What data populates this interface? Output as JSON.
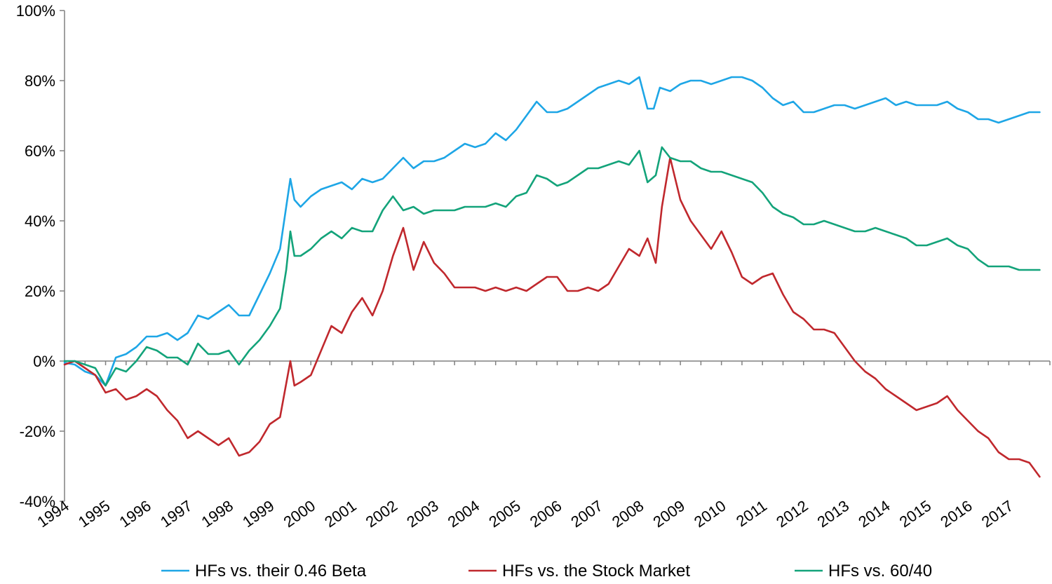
{
  "chart_data": {
    "type": "line",
    "title": "",
    "xlabel": "",
    "ylabel": "",
    "ylim": [
      -40,
      100
    ],
    "yticks": [
      "100%",
      "80%",
      "60%",
      "40%",
      "20%",
      "0%",
      "-20%",
      "-40%"
    ],
    "ytick_values": [
      100,
      80,
      60,
      40,
      20,
      0,
      -20,
      -40
    ],
    "xlim": [
      1994.0,
      2018.0
    ],
    "xticks": [
      "1994",
      "1995",
      "1996",
      "1997",
      "1998",
      "1999",
      "2000",
      "2001",
      "2002",
      "2003",
      "2004",
      "2005",
      "2006",
      "2007",
      "2008",
      "2009",
      "2010",
      "2011",
      "2012",
      "2013",
      "2014",
      "2015",
      "2016",
      "2017"
    ],
    "grid": false,
    "legend_position": "bottom",
    "series": [
      {
        "name": "HFs vs. their 0.46 Beta",
        "color": "#1ea6e6",
        "x": [
          1994.0,
          1994.25,
          1994.5,
          1994.75,
          1995.0,
          1995.25,
          1995.5,
          1995.75,
          1996.0,
          1996.25,
          1996.5,
          1996.75,
          1997.0,
          1997.25,
          1997.5,
          1997.75,
          1998.0,
          1998.25,
          1998.5,
          1998.75,
          1999.0,
          1999.25,
          1999.4,
          1999.5,
          1999.6,
          1999.75,
          2000.0,
          2000.25,
          2000.5,
          2000.75,
          2001.0,
          2001.25,
          2001.5,
          2001.75,
          2002.0,
          2002.25,
          2002.5,
          2002.75,
          2003.0,
          2003.25,
          2003.5,
          2003.75,
          2004.0,
          2004.25,
          2004.5,
          2004.75,
          2005.0,
          2005.25,
          2005.5,
          2005.75,
          2006.0,
          2006.25,
          2006.5,
          2006.75,
          2007.0,
          2007.25,
          2007.5,
          2007.75,
          2008.0,
          2008.2,
          2008.35,
          2008.5,
          2008.75,
          2009.0,
          2009.25,
          2009.5,
          2009.75,
          2010.0,
          2010.25,
          2010.5,
          2010.75,
          2011.0,
          2011.25,
          2011.5,
          2011.75,
          2012.0,
          2012.25,
          2012.5,
          2012.75,
          2013.0,
          2013.25,
          2013.5,
          2013.75,
          2014.0,
          2014.25,
          2014.5,
          2014.75,
          2015.0,
          2015.25,
          2015.5,
          2015.75,
          2016.0,
          2016.25,
          2016.5,
          2016.75,
          2017.0,
          2017.25,
          2017.5,
          2017.75
        ],
        "values": [
          -0.5,
          -1,
          -3,
          -4,
          -7,
          1,
          2,
          4,
          7,
          7,
          8,
          6,
          8,
          13,
          12,
          14,
          16,
          13,
          13,
          19,
          25,
          32,
          44,
          52,
          46,
          44,
          47,
          49,
          50,
          51,
          49,
          52,
          51,
          52,
          55,
          58,
          55,
          57,
          57,
          58,
          60,
          62,
          61,
          62,
          65,
          63,
          66,
          70,
          74,
          71,
          71,
          72,
          74,
          76,
          78,
          79,
          80,
          79,
          81,
          72,
          72,
          78,
          77,
          79,
          80,
          80,
          79,
          80,
          81,
          81,
          80,
          78,
          75,
          73,
          74,
          71,
          71,
          72,
          73,
          73,
          72,
          73,
          74,
          75,
          73,
          74,
          73,
          73,
          73,
          74,
          72,
          71,
          69,
          69,
          68,
          69,
          70,
          71,
          71
        ]
      },
      {
        "name": "HFs vs. the Stock Market",
        "color": "#c0282d",
        "x": [
          1994.0,
          1994.25,
          1994.5,
          1994.75,
          1995.0,
          1995.25,
          1995.5,
          1995.75,
          1996.0,
          1996.25,
          1996.5,
          1996.75,
          1997.0,
          1997.25,
          1997.5,
          1997.75,
          1998.0,
          1998.25,
          1998.5,
          1998.75,
          1999.0,
          1999.25,
          1999.5,
          1999.6,
          1999.75,
          2000.0,
          2000.25,
          2000.5,
          2000.75,
          2001.0,
          2001.25,
          2001.5,
          2001.75,
          2002.0,
          2002.25,
          2002.5,
          2002.75,
          2003.0,
          2003.25,
          2003.5,
          2003.75,
          2004.0,
          2004.25,
          2004.5,
          2004.75,
          2005.0,
          2005.25,
          2005.5,
          2005.75,
          2006.0,
          2006.25,
          2006.5,
          2006.75,
          2007.0,
          2007.25,
          2007.5,
          2007.75,
          2008.0,
          2008.2,
          2008.4,
          2008.55,
          2008.75,
          2009.0,
          2009.25,
          2009.5,
          2009.75,
          2010.0,
          2010.25,
          2010.5,
          2010.75,
          2011.0,
          2011.25,
          2011.5,
          2011.75,
          2012.0,
          2012.25,
          2012.5,
          2012.75,
          2013.0,
          2013.25,
          2013.5,
          2013.75,
          2014.0,
          2014.25,
          2014.5,
          2014.75,
          2015.0,
          2015.25,
          2015.5,
          2015.75,
          2016.0,
          2016.25,
          2016.5,
          2016.75,
          2017.0,
          2017.25,
          2017.5,
          2017.75
        ],
        "values": [
          -1,
          0,
          -2,
          -4,
          -9,
          -8,
          -11,
          -10,
          -8,
          -10,
          -14,
          -17,
          -22,
          -20,
          -22,
          -24,
          -22,
          -27,
          -26,
          -23,
          -18,
          -16,
          0,
          -7,
          -6,
          -4,
          3,
          10,
          8,
          14,
          18,
          13,
          20,
          30,
          38,
          26,
          34,
          28,
          25,
          21,
          21,
          21,
          20,
          21,
          20,
          21,
          20,
          22,
          24,
          24,
          20,
          20,
          21,
          20,
          22,
          27,
          32,
          30,
          35,
          28,
          44,
          58,
          46,
          40,
          36,
          32,
          37,
          31,
          24,
          22,
          24,
          25,
          19,
          14,
          12,
          9,
          9,
          8,
          4,
          0,
          -3,
          -5,
          -8,
          -10,
          -12,
          -14,
          -13,
          -12,
          -10,
          -14,
          -17,
          -20,
          -22,
          -26,
          -28,
          -28,
          -29,
          -33
        ]
      },
      {
        "name": "HFs vs. 60/40",
        "color": "#13a37a",
        "x": [
          1994.0,
          1994.25,
          1994.5,
          1994.75,
          1995.0,
          1995.25,
          1995.5,
          1995.75,
          1996.0,
          1996.25,
          1996.5,
          1996.75,
          1997.0,
          1997.25,
          1997.5,
          1997.75,
          1998.0,
          1998.25,
          1998.5,
          1998.75,
          1999.0,
          1999.25,
          1999.4,
          1999.5,
          1999.6,
          1999.75,
          2000.0,
          2000.25,
          2000.5,
          2000.75,
          2001.0,
          2001.25,
          2001.5,
          2001.75,
          2002.0,
          2002.25,
          2002.5,
          2002.75,
          2003.0,
          2003.25,
          2003.5,
          2003.75,
          2004.0,
          2004.25,
          2004.5,
          2004.75,
          2005.0,
          2005.25,
          2005.5,
          2005.75,
          2006.0,
          2006.25,
          2006.5,
          2006.75,
          2007.0,
          2007.25,
          2007.5,
          2007.75,
          2008.0,
          2008.2,
          2008.4,
          2008.55,
          2008.75,
          2009.0,
          2009.25,
          2009.5,
          2009.75,
          2010.0,
          2010.25,
          2010.5,
          2010.75,
          2011.0,
          2011.25,
          2011.5,
          2011.75,
          2012.0,
          2012.25,
          2012.5,
          2012.75,
          2013.0,
          2013.25,
          2013.5,
          2013.75,
          2014.0,
          2014.25,
          2014.5,
          2014.75,
          2015.0,
          2015.25,
          2015.5,
          2015.75,
          2016.0,
          2016.25,
          2016.5,
          2016.75,
          2017.0,
          2017.25,
          2017.5,
          2017.75
        ],
        "values": [
          0,
          0,
          -1,
          -2,
          -7,
          -2,
          -3,
          0,
          4,
          3,
          1,
          1,
          -1,
          5,
          2,
          2,
          3,
          -1,
          3,
          6,
          10,
          15,
          26,
          37,
          30,
          30,
          32,
          35,
          37,
          35,
          38,
          37,
          37,
          43,
          47,
          43,
          44,
          42,
          43,
          43,
          43,
          44,
          44,
          44,
          45,
          44,
          47,
          48,
          53,
          52,
          50,
          51,
          53,
          55,
          55,
          56,
          57,
          56,
          60,
          51,
          53,
          61,
          58,
          57,
          57,
          55,
          54,
          54,
          53,
          52,
          51,
          48,
          44,
          42,
          41,
          39,
          39,
          40,
          39,
          38,
          37,
          37,
          38,
          37,
          36,
          35,
          33,
          33,
          34,
          35,
          33,
          32,
          29,
          27,
          27,
          27,
          26,
          26,
          26
        ]
      }
    ]
  }
}
